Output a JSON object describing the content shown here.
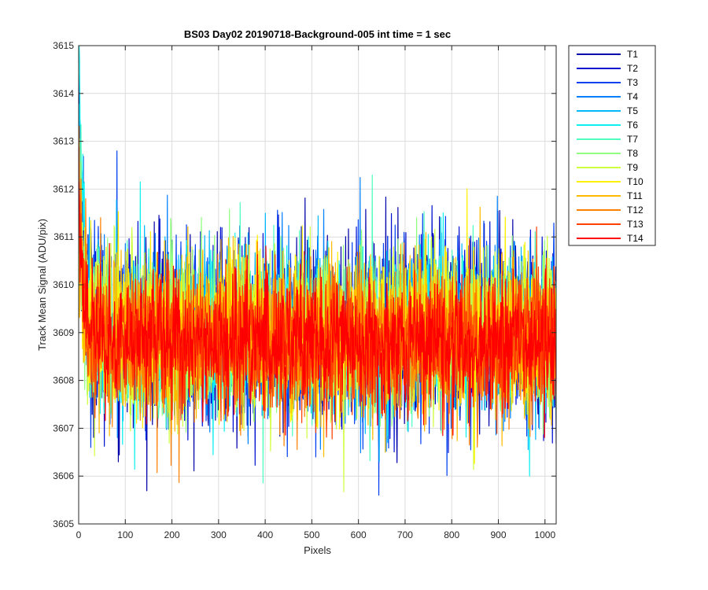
{
  "chart_data": {
    "type": "line",
    "title": "BS03 Day02 20190718-Background-005 int time = 1 sec",
    "xlabel": "Pixels",
    "ylabel": "Track Mean Signal (ADU/pix)",
    "xlim": [
      0,
      1024
    ],
    "ylim": [
      3605,
      3615
    ],
    "xticks": [
      0,
      100,
      200,
      300,
      400,
      500,
      600,
      700,
      800,
      900,
      1000
    ],
    "yticks": [
      3605,
      3606,
      3607,
      3608,
      3609,
      3610,
      3611,
      3612,
      3613,
      3614,
      3615
    ],
    "grid": true,
    "legend_position": "outside-top-right",
    "n_points": 1024,
    "noise_note_mean": 3608.8,
    "series": [
      {
        "name": "T1",
        "color": "#0000AA",
        "mean": 3609.0,
        "spread": 1.05,
        "start": 3613.5
      },
      {
        "name": "T2",
        "color": "#0010D0",
        "mean": 3609.0,
        "spread": 1.0,
        "start": 3614.4
      },
      {
        "name": "T3",
        "color": "#0040F0",
        "mean": 3609.0,
        "spread": 0.95,
        "start": 3612.6
      },
      {
        "name": "T4",
        "color": "#0080FF",
        "mean": 3609.0,
        "spread": 0.95,
        "start": 3612.2
      },
      {
        "name": "T5",
        "color": "#00B8FF",
        "mean": 3609.0,
        "spread": 0.9,
        "start": 3613.6
      },
      {
        "name": "T6",
        "color": "#10F0F0",
        "mean": 3609.0,
        "spread": 0.9,
        "start": 3615.0
      },
      {
        "name": "T7",
        "color": "#50FFC0",
        "mean": 3609.0,
        "spread": 0.9,
        "start": 3612.4
      },
      {
        "name": "T8",
        "color": "#90FF80",
        "mean": 3609.0,
        "spread": 0.9,
        "start": 3611.8
      },
      {
        "name": "T9",
        "color": "#D0FF40",
        "mean": 3609.0,
        "spread": 0.9,
        "start": 3611.5
      },
      {
        "name": "T10",
        "color": "#FFF000",
        "mean": 3609.0,
        "spread": 0.9,
        "start": 3611.2
      },
      {
        "name": "T11",
        "color": "#FFBA00",
        "mean": 3608.9,
        "spread": 0.9,
        "start": 3611.0
      },
      {
        "name": "T12",
        "color": "#FF8000",
        "mean": 3608.8,
        "spread": 0.85,
        "start": 3612.8
      },
      {
        "name": "T13",
        "color": "#FF4000",
        "mean": 3608.8,
        "spread": 0.8,
        "start": 3612.0
      },
      {
        "name": "T14",
        "color": "#FF0000",
        "mean": 3608.8,
        "spread": 0.75,
        "start": 3611.6
      }
    ]
  }
}
